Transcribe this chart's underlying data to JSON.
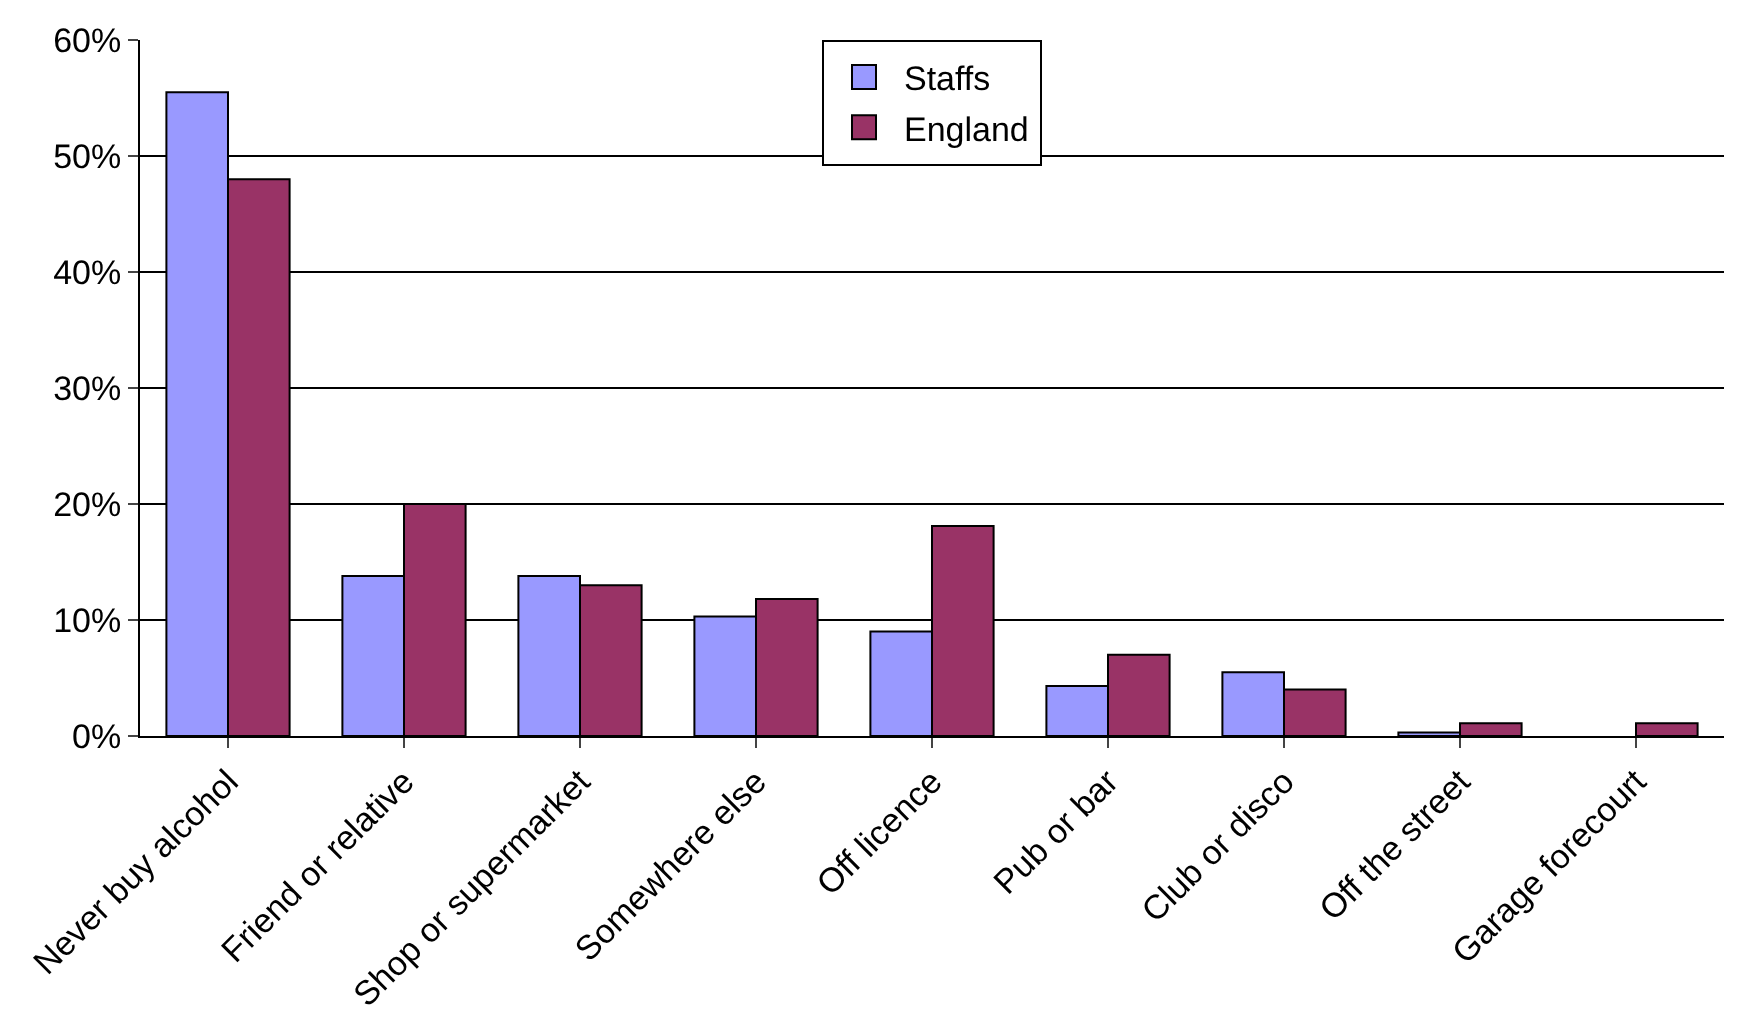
{
  "chart_data": {
    "type": "bar",
    "categories": [
      "Never buy alcohol",
      "Friend or relative",
      "Shop or supermarket",
      "Somewhere else",
      "Off licence",
      "Pub or bar",
      "Club or disco",
      "Off the street",
      "Garage forecourt"
    ],
    "series": [
      {
        "name": "Staffs",
        "color": "#9999ff",
        "values": [
          55.5,
          13.8,
          13.8,
          10.3,
          9.0,
          4.3,
          5.5,
          0.3,
          null
        ]
      },
      {
        "name": "England",
        "color": "#993366",
        "values": [
          48,
          20,
          13,
          11.8,
          18.1,
          7,
          4,
          1.1,
          1.1
        ]
      }
    ],
    "ylim": [
      0,
      60
    ],
    "yticks": [
      {
        "value": 0,
        "label": "0%"
      },
      {
        "value": 10,
        "label": "10%"
      },
      {
        "value": 20,
        "label": "20%"
      },
      {
        "value": 30,
        "label": "30%"
      },
      {
        "value": 40,
        "label": "40%"
      },
      {
        "value": 50,
        "label": "50%"
      },
      {
        "value": 60,
        "label": "60%"
      }
    ],
    "grid": "y",
    "legend": "top"
  }
}
